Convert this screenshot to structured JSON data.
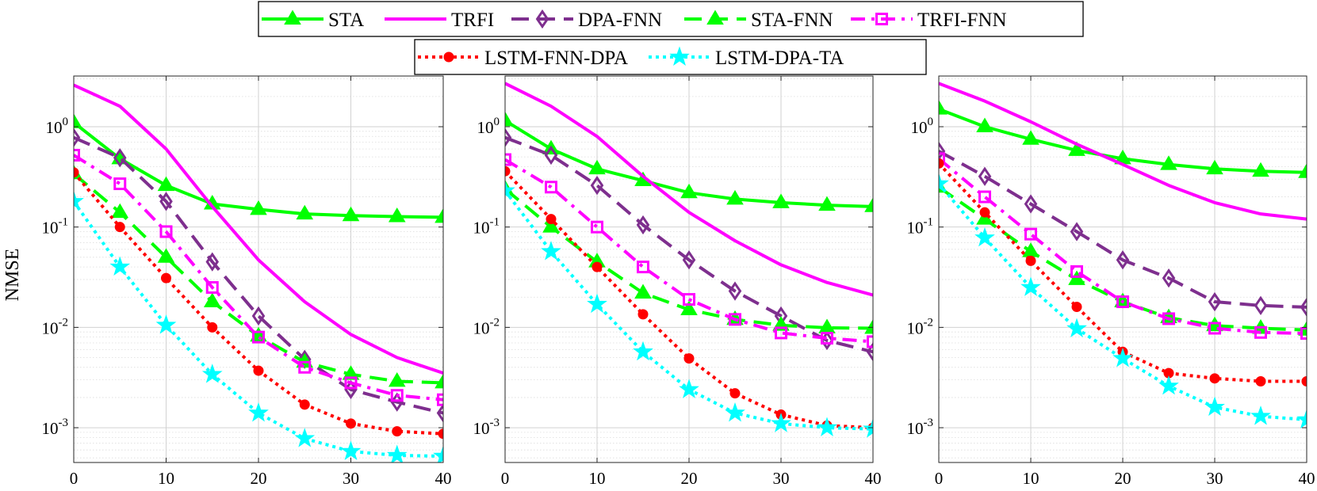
{
  "chart_data": {
    "type": "line",
    "yscale": "log",
    "ylabel": "NMSE",
    "x": [
      0,
      5,
      10,
      15,
      20,
      25,
      30,
      35,
      40
    ],
    "xticks": [
      0,
      10,
      20,
      30,
      40
    ],
    "xlim": [
      0,
      40
    ],
    "ylim": [
      0.00045,
      3.2
    ],
    "yticks": [
      {
        "value": 1,
        "base": "10",
        "exp": "0"
      },
      {
        "value": 0.1,
        "base": "10",
        "exp": "-1"
      },
      {
        "value": 0.01,
        "base": "10",
        "exp": "-2"
      },
      {
        "value": 0.001,
        "base": "10",
        "exp": "-3"
      }
    ],
    "grid": true,
    "legend_position": "top-center",
    "series_styles": [
      {
        "name": "STA",
        "color": "#00ff00",
        "dash": "solid",
        "marker": "triangle"
      },
      {
        "name": "TRFI",
        "color": "#ff00ff",
        "dash": "solid",
        "marker": "none"
      },
      {
        "name": "DPA-FNN",
        "color": "#7e2f8e",
        "dash": "dash",
        "marker": "diamond"
      },
      {
        "name": "STA-FNN",
        "color": "#00ff00",
        "dash": "dash",
        "marker": "triangle"
      },
      {
        "name": "TRFI-FNN",
        "color": "#ff00ff",
        "dash": "dashdot",
        "marker": "square"
      },
      {
        "name": "LSTM-FNN-DPA",
        "color": "#ff0000",
        "dash": "dot",
        "marker": "circle"
      },
      {
        "name": "LSTM-DPA-TA",
        "color": "#00ffff",
        "dash": "dot",
        "marker": "star"
      }
    ],
    "panels": [
      {
        "series": [
          {
            "name": "STA",
            "values": [
              1.1,
              0.48,
              0.26,
              0.17,
              0.15,
              0.135,
              0.13,
              0.127,
              0.125
            ]
          },
          {
            "name": "TRFI",
            "values": [
              2.6,
              1.6,
              0.6,
              0.16,
              0.047,
              0.018,
              0.0085,
              0.005,
              0.0035
            ]
          },
          {
            "name": "DPA-FNN",
            "values": [
              0.78,
              0.49,
              0.18,
              0.045,
              0.013,
              0.0048,
              0.0024,
              0.0018,
              0.0014
            ]
          },
          {
            "name": "STA-FNN",
            "values": [
              0.34,
              0.14,
              0.05,
              0.018,
              0.0082,
              0.0045,
              0.0034,
              0.0029,
              0.0028
            ]
          },
          {
            "name": "TRFI-FNN",
            "values": [
              0.52,
              0.27,
              0.09,
              0.025,
              0.008,
              0.004,
              0.0028,
              0.0021,
              0.0019
            ]
          },
          {
            "name": "LSTM-FNN-DPA",
            "values": [
              0.35,
              0.1,
              0.031,
              0.01,
              0.0037,
              0.0017,
              0.0011,
              0.00092,
              0.00087
            ]
          },
          {
            "name": "LSTM-DPA-TA",
            "values": [
              0.18,
              0.04,
              0.0105,
              0.0034,
              0.0014,
              0.00078,
              0.00058,
              0.00053,
              0.00052
            ]
          }
        ]
      },
      {
        "series": [
          {
            "name": "STA",
            "values": [
              1.15,
              0.6,
              0.38,
              0.29,
              0.22,
              0.19,
              0.175,
              0.165,
              0.16
            ]
          },
          {
            "name": "TRFI",
            "values": [
              2.7,
              1.6,
              0.8,
              0.32,
              0.14,
              0.073,
              0.042,
              0.028,
              0.021
            ]
          },
          {
            "name": "DPA-FNN",
            "values": [
              0.78,
              0.52,
              0.26,
              0.105,
              0.047,
              0.023,
              0.013,
              0.0074,
              0.0057
            ]
          },
          {
            "name": "STA-FNN",
            "values": [
              0.24,
              0.1,
              0.045,
              0.022,
              0.015,
              0.012,
              0.0105,
              0.0099,
              0.0098
            ]
          },
          {
            "name": "TRFI-FNN",
            "values": [
              0.47,
              0.25,
              0.1,
              0.04,
              0.019,
              0.012,
              0.0088,
              0.0078,
              0.0072
            ]
          },
          {
            "name": "LSTM-FNN-DPA",
            "values": [
              0.36,
              0.12,
              0.04,
              0.0135,
              0.0049,
              0.0022,
              0.00135,
              0.00105,
              0.001
            ]
          },
          {
            "name": "LSTM-DPA-TA",
            "values": [
              0.23,
              0.057,
              0.017,
              0.0057,
              0.0024,
              0.0014,
              0.0011,
              0.001,
              0.00097
            ]
          }
        ]
      },
      {
        "series": [
          {
            "name": "STA",
            "values": [
              1.5,
              1.0,
              0.75,
              0.58,
              0.48,
              0.42,
              0.38,
              0.36,
              0.35
            ]
          },
          {
            "name": "TRFI",
            "values": [
              2.7,
              1.8,
              1.12,
              0.67,
              0.42,
              0.26,
              0.175,
              0.135,
              0.12
            ]
          },
          {
            "name": "DPA-FNN",
            "values": [
              0.57,
              0.32,
              0.17,
              0.09,
              0.047,
              0.031,
              0.018,
              0.0165,
              0.0159
            ]
          },
          {
            "name": "STA-FNN",
            "values": [
              0.25,
              0.12,
              0.057,
              0.03,
              0.018,
              0.0125,
              0.0104,
              0.0098,
              0.0094
            ]
          },
          {
            "name": "TRFI-FNN",
            "values": [
              0.48,
              0.2,
              0.085,
              0.036,
              0.018,
              0.0122,
              0.0098,
              0.0089,
              0.0087
            ]
          },
          {
            "name": "LSTM-FNN-DPA",
            "values": [
              0.43,
              0.14,
              0.046,
              0.016,
              0.0057,
              0.0035,
              0.0031,
              0.0029,
              0.0029
            ]
          },
          {
            "name": "LSTM-DPA-TA",
            "values": [
              0.27,
              0.078,
              0.025,
              0.0097,
              0.0049,
              0.0026,
              0.0016,
              0.0013,
              0.0012
            ]
          }
        ]
      }
    ]
  }
}
